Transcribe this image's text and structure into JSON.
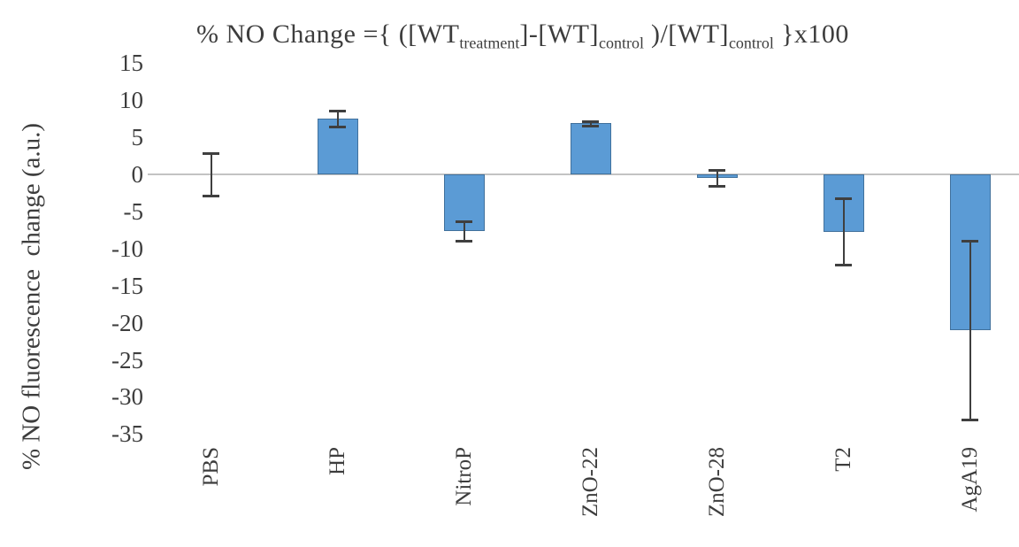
{
  "chart_data": {
    "type": "bar",
    "title_parts": [
      {
        "text": "% NO Change ={ ([WT",
        "sub": false
      },
      {
        "text": "treatment",
        "sub": true
      },
      {
        "text": "]-[WT]",
        "sub": false
      },
      {
        "text": "control",
        "sub": true
      },
      {
        "text": " )/[WT]",
        "sub": false
      },
      {
        "text": "control",
        "sub": true
      },
      {
        "text": " }x100",
        "sub": false
      }
    ],
    "title_plain": "% NO Change ={ ([WT treatment]-[WT]control )/[WT]control }x100",
    "ylabel": "% NO fluorescence  change (a.u.)",
    "xlabel": "",
    "categories": [
      "PBS",
      "HP",
      "NitroP",
      "ZnO-22",
      "ZnO-28",
      "T2",
      "AgA19"
    ],
    "series": [
      {
        "name": "% NO fluorescence change",
        "values": [
          0,
          7.5,
          -7.6,
          6.9,
          -0.5,
          -7.7,
          -21
        ],
        "errors": [
          2.9,
          1.1,
          1.3,
          0.3,
          1.1,
          4.5,
          12
        ]
      }
    ],
    "yticks": [
      15,
      10,
      5,
      0,
      -5,
      -10,
      -15,
      -20,
      -25,
      -30,
      -35
    ],
    "ylim": [
      -35,
      15
    ],
    "grid": false,
    "legend_position": "none",
    "colors": {
      "bar_fill": "#5b9bd5",
      "bar_border": "#41719c",
      "error_bar": "#3f3f3f",
      "zero_line": "#c3c3c3",
      "text": "#3d3d3d",
      "background": "#ffffff"
    }
  }
}
